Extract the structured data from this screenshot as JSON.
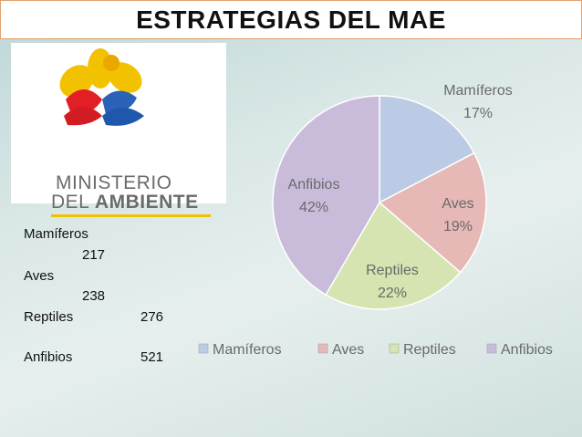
{
  "title": "ESTRATEGIAS DEL MAE",
  "logo": {
    "line1": "MINISTERIO",
    "line2_prefix": "DEL ",
    "line2_bold": "AMBIENTE"
  },
  "table": [
    {
      "label": "Mamíferos",
      "value": "217"
    },
    {
      "label": "Aves",
      "value": "238"
    },
    {
      "label": "Reptiles",
      "value": "276"
    },
    {
      "label": "Anfibios",
      "value": "521"
    }
  ],
  "colors": {
    "Mamíferos": "#bccbe5",
    "Aves": "#e6b8b6",
    "Reptiles": "#d5e4b0",
    "Anfibios": "#c9bcdb",
    "label": "#6a6a6a"
  },
  "chart_data": {
    "type": "pie",
    "categories": [
      "Mamíferos",
      "Aves",
      "Reptiles",
      "Anfibios"
    ],
    "values": [
      217,
      238,
      276,
      521
    ],
    "percent_labels": [
      "17%",
      "19%",
      "22%",
      "42%"
    ],
    "legend_position": "bottom"
  }
}
